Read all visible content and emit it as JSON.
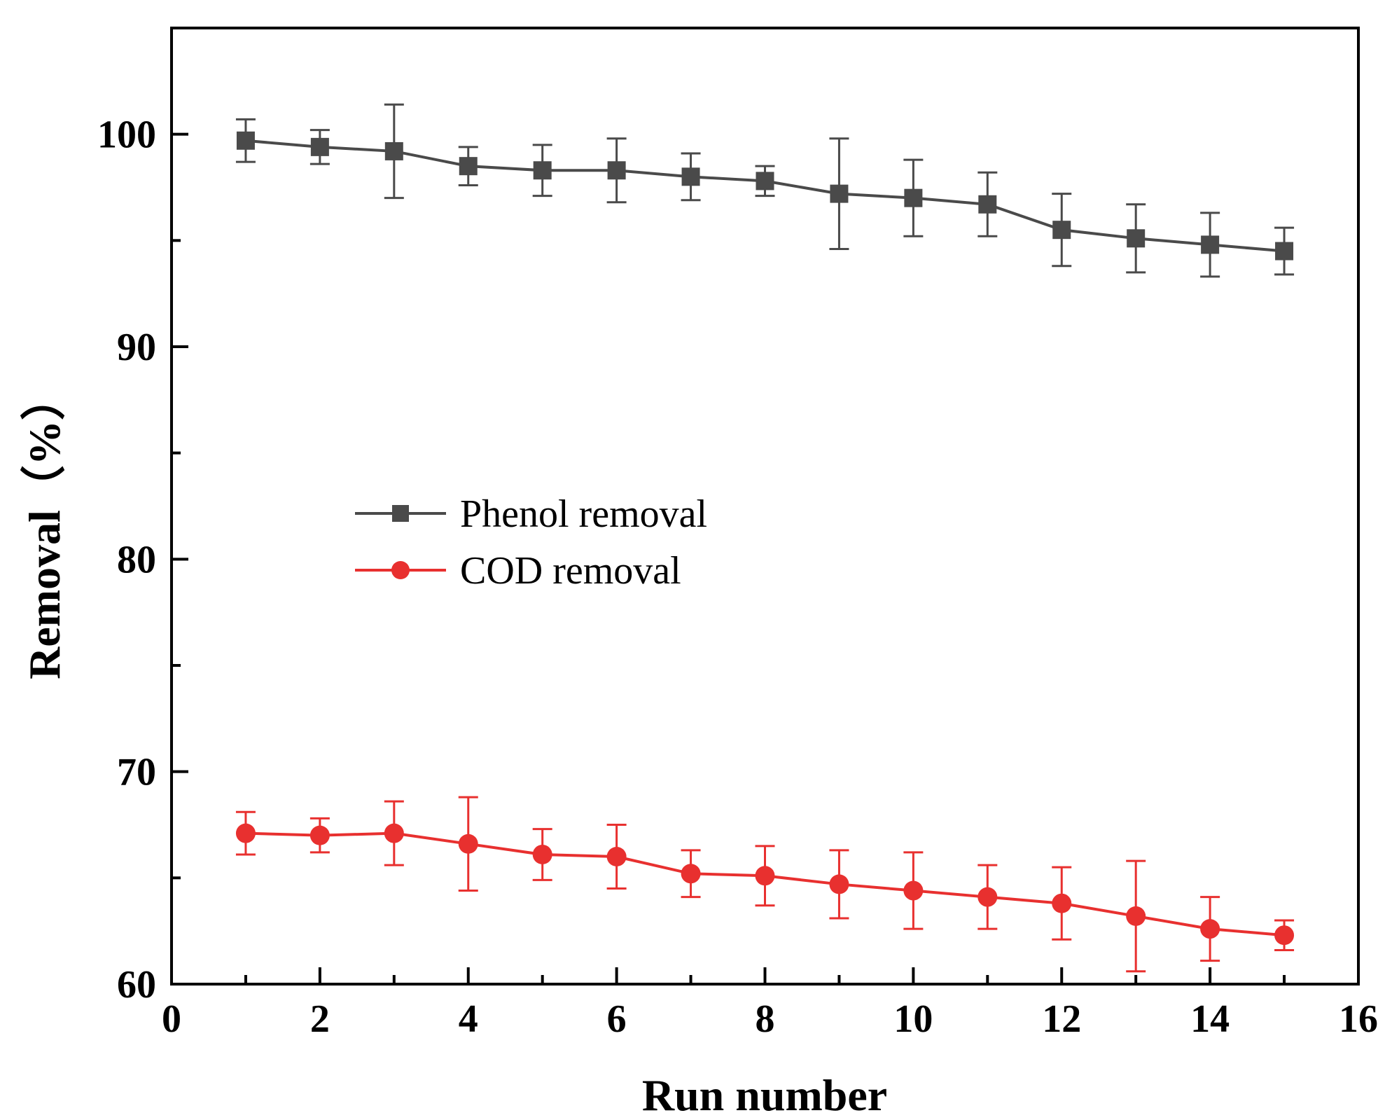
{
  "chart_data": {
    "type": "line",
    "title": "",
    "xlabel": "Run number",
    "ylabel": "Removal（%）",
    "xlim": [
      0,
      16
    ],
    "ylim": [
      60,
      105
    ],
    "xticks": [
      0,
      2,
      4,
      6,
      8,
      10,
      12,
      14,
      16
    ],
    "yticks": [
      60,
      70,
      80,
      90,
      100
    ],
    "grid": false,
    "legend_position": "center-left",
    "x": [
      1,
      2,
      3,
      4,
      5,
      6,
      7,
      8,
      9,
      10,
      11,
      12,
      13,
      14,
      15
    ],
    "series": [
      {
        "name": "Phenol removal",
        "color": "#4a4a4a",
        "marker": "square",
        "values": [
          99.7,
          99.4,
          99.2,
          98.5,
          98.3,
          98.3,
          98.0,
          97.8,
          97.2,
          97.0,
          96.7,
          95.5,
          95.1,
          94.8,
          94.5
        ],
        "errors": [
          1.0,
          0.8,
          2.2,
          0.9,
          1.2,
          1.5,
          1.1,
          0.7,
          2.6,
          1.8,
          1.5,
          1.7,
          1.6,
          1.5,
          1.1
        ]
      },
      {
        "name": "COD removal",
        "color": "#e8302f",
        "marker": "circle",
        "values": [
          67.1,
          67.0,
          67.1,
          66.6,
          66.1,
          66.0,
          65.2,
          65.1,
          64.7,
          64.4,
          64.1,
          63.8,
          63.2,
          62.6,
          62.3
        ],
        "errors": [
          1.0,
          0.8,
          1.5,
          2.2,
          1.2,
          1.5,
          1.1,
          1.4,
          1.6,
          1.8,
          1.5,
          1.7,
          2.6,
          1.5,
          0.7
        ]
      }
    ]
  }
}
